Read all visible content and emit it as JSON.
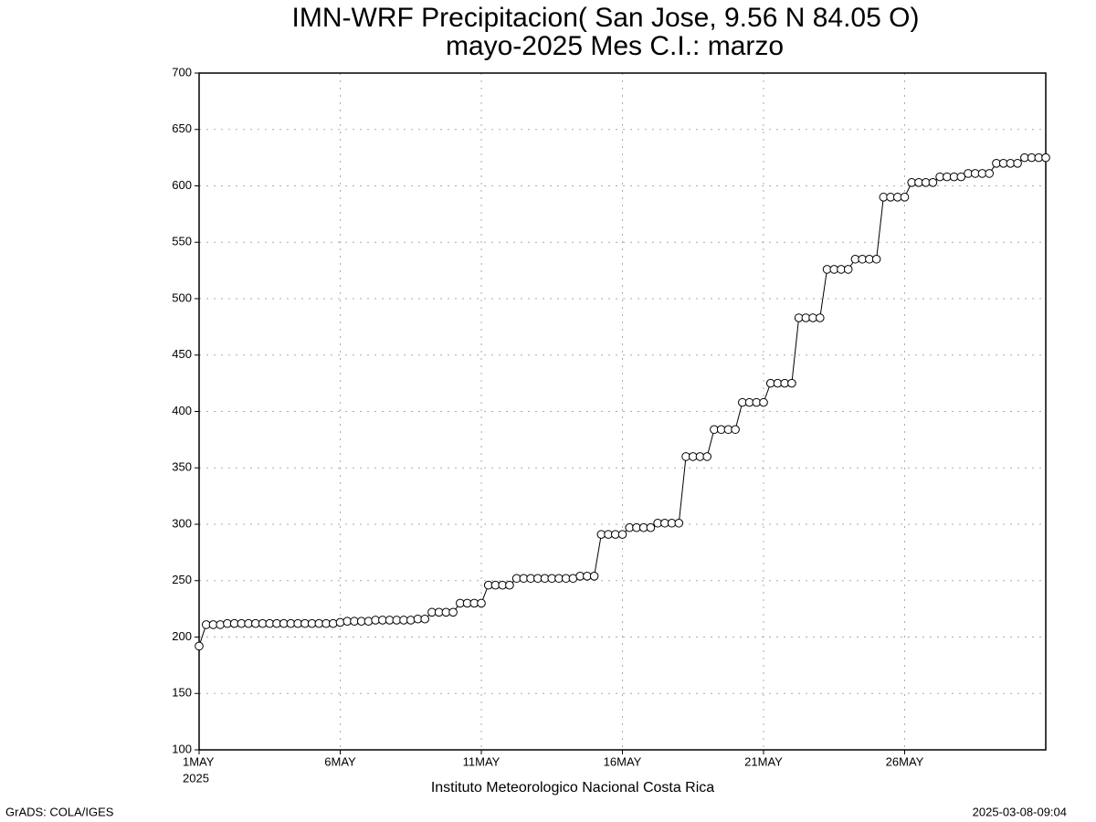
{
  "chart_data": {
    "type": "line",
    "title": "IMN-WRF  Precipitacion( San Jose, 9.56  N 84.05  O)",
    "subtitle": "mayo-2025 Mes C.I.: marzo",
    "xlabel_year": "2025",
    "credit": "Instituto Meteorologico Nacional Costa Rica",
    "footer_left": "GrADS: COLA/IGES",
    "footer_right": "2025-03-08-09:04",
    "grid": true,
    "xlim": [
      1,
      31
    ],
    "xticks": [
      {
        "value": 1,
        "label": "1MAY"
      },
      {
        "value": 6,
        "label": "6MAY"
      },
      {
        "value": 11,
        "label": "11MAY"
      },
      {
        "value": 16,
        "label": "16MAY"
      },
      {
        "value": 21,
        "label": "21MAY"
      },
      {
        "value": 26,
        "label": "26MAY"
      }
    ],
    "ylim": [
      100,
      700
    ],
    "yticks": [
      100,
      150,
      200,
      250,
      300,
      350,
      400,
      450,
      500,
      550,
      600,
      650,
      700
    ],
    "x": [
      1,
      1.25,
      1.5,
      1.75,
      2,
      2.25,
      2.5,
      2.75,
      3,
      3.25,
      3.5,
      3.75,
      4,
      4.25,
      4.5,
      4.75,
      5,
      5.25,
      5.5,
      5.75,
      6,
      6.25,
      6.5,
      6.75,
      7,
      7.25,
      7.5,
      7.75,
      8,
      8.25,
      8.5,
      8.75,
      9,
      9.25,
      9.5,
      9.75,
      10,
      10.25,
      10.5,
      10.75,
      11,
      11.25,
      11.5,
      11.75,
      12,
      12.25,
      12.5,
      12.75,
      13,
      13.25,
      13.5,
      13.75,
      14,
      14.25,
      14.5,
      14.75,
      15,
      15.25,
      15.5,
      15.75,
      16,
      16.25,
      16.5,
      16.75,
      17,
      17.25,
      17.5,
      17.75,
      18,
      18.25,
      18.5,
      18.75,
      19,
      19.25,
      19.5,
      19.75,
      20,
      20.25,
      20.5,
      20.75,
      21,
      21.25,
      21.5,
      21.75,
      22,
      22.25,
      22.5,
      22.75,
      23,
      23.25,
      23.5,
      23.75,
      24,
      24.25,
      24.5,
      24.75,
      25,
      25.25,
      25.5,
      25.75,
      26,
      26.25,
      26.5,
      26.75,
      27,
      27.25,
      27.5,
      27.75,
      28,
      28.25,
      28.5,
      28.75,
      29,
      29.25,
      29.5,
      29.75,
      30,
      30.25,
      30.5,
      30.75,
      31
    ],
    "series": [
      {
        "color": "#000000",
        "values": [
          192,
          211,
          211,
          211,
          212,
          212,
          212,
          212,
          212,
          212,
          212,
          212,
          212,
          212,
          212,
          212,
          212,
          212,
          212,
          212,
          213,
          214,
          214,
          214,
          214,
          215,
          215,
          215,
          215,
          215,
          215,
          216,
          216,
          222,
          222,
          222,
          222,
          230,
          230,
          230,
          230,
          246,
          246,
          246,
          246,
          252,
          252,
          252,
          252,
          252,
          252,
          252,
          252,
          252,
          254,
          254,
          254,
          291,
          291,
          291,
          291,
          297,
          297,
          297,
          297,
          301,
          301,
          301,
          301,
          360,
          360,
          360,
          360,
          384,
          384,
          384,
          384,
          408,
          408,
          408,
          408,
          425,
          425,
          425,
          425,
          483,
          483,
          483,
          483,
          526,
          526,
          526,
          526,
          535,
          535,
          535,
          535,
          590,
          590,
          590,
          590,
          603,
          603,
          603,
          603,
          608,
          608,
          608,
          608,
          611,
          611,
          611,
          611,
          620,
          620,
          620,
          620,
          625,
          625,
          625,
          625
        ]
      }
    ]
  }
}
